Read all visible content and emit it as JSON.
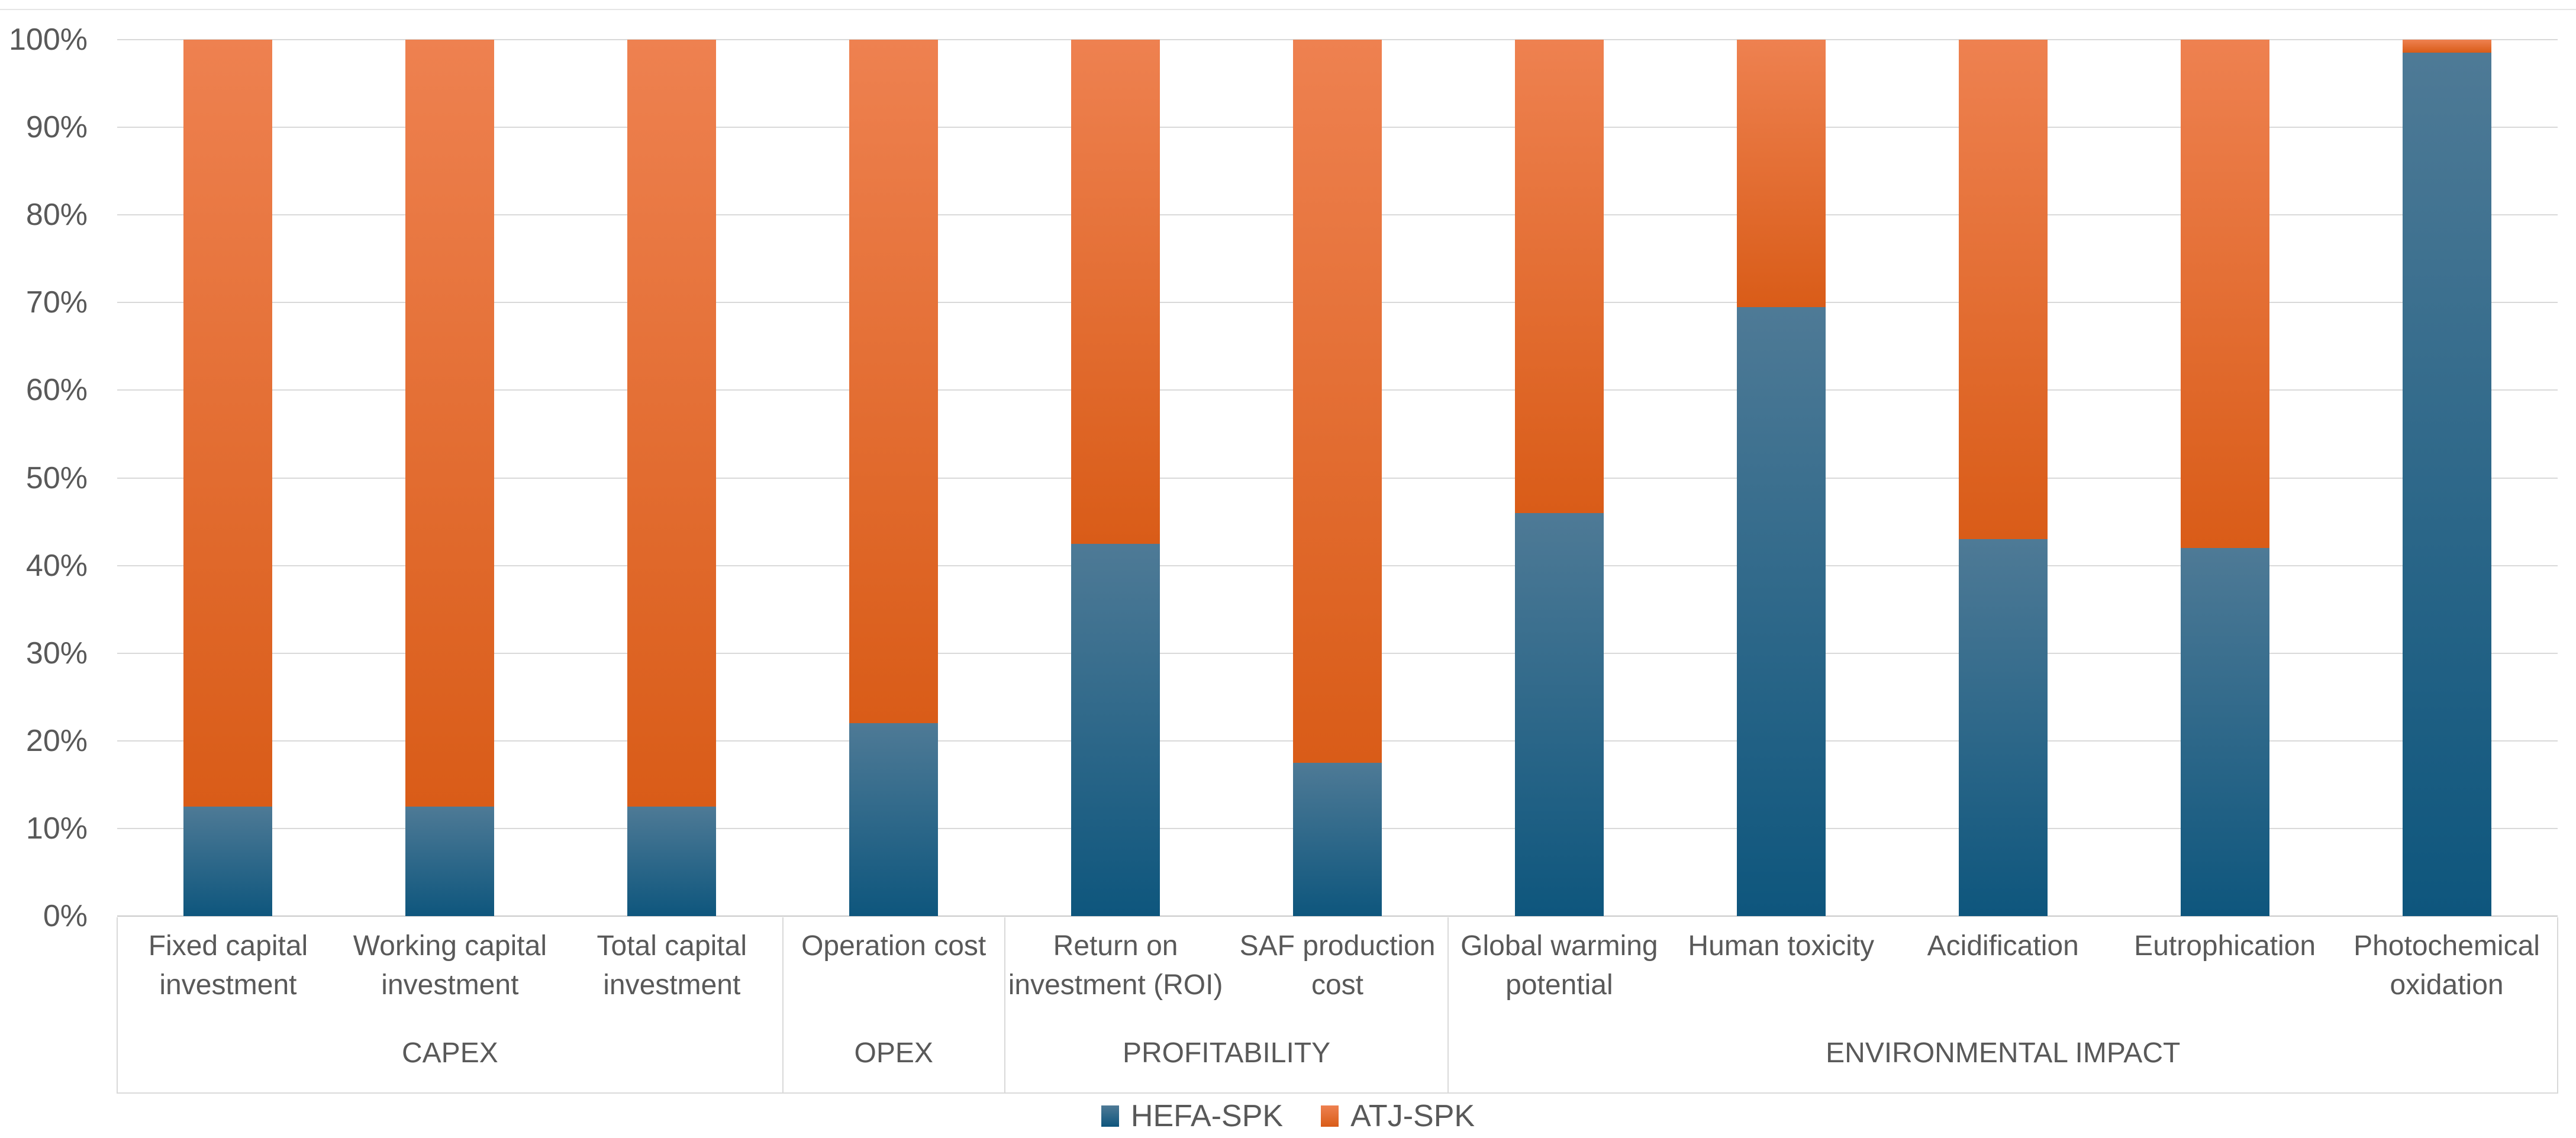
{
  "chart_data": {
    "type": "bar",
    "variant": "100%-stacked-column",
    "categories": [
      "Fixed capital investment",
      "Working capital investment",
      "Total capital investment",
      "Operation cost",
      "Return on investment (ROI)",
      "SAF production cost",
      "Global warming potential",
      "Human toxicity",
      "Acidification",
      "Eutrophication",
      "Photochemical oxidation"
    ],
    "category_groups": [
      {
        "label": "CAPEX",
        "span": 3
      },
      {
        "label": "OPEX",
        "span": 1
      },
      {
        "label": "PROFITABILITY",
        "span": 2
      },
      {
        "label": "ENVIRONMENTAL IMPACT",
        "span": 5
      }
    ],
    "series": [
      {
        "name": "HEFA-SPK",
        "values": [
          12.5,
          12.5,
          12.5,
          22,
          42.5,
          17.5,
          46,
          69.5,
          43,
          42,
          98.5
        ],
        "color_top": "#4E7A96",
        "color_bottom": "#0E567D"
      },
      {
        "name": "ATJ-SPK",
        "values": [
          87.5,
          87.5,
          87.5,
          78,
          57.5,
          82.5,
          54,
          30.5,
          57,
          58,
          1.5
        ],
        "color_top": "#EE8150",
        "color_bottom": "#D95C18"
      }
    ],
    "y_axis": {
      "min": 0,
      "max": 100,
      "unit": "%",
      "tick_step": 10,
      "ticks": [
        "100%",
        "90%",
        "80%",
        "70%",
        "60%",
        "50%",
        "40%",
        "30%",
        "20%",
        "10%",
        "0%"
      ]
    },
    "grid": true,
    "legend_position": "bottom",
    "title": ""
  },
  "colors": {
    "hefa_gradient_top": "#4E7A96",
    "hefa_gradient_bottom": "#0E567D",
    "atj_gradient_top": "#EE8150",
    "atj_gradient_bottom": "#D95C18",
    "gridline": "#D9D9D9",
    "axis_line": "#C9C9C9",
    "label_text": "#595959",
    "background": "#FFFFFF"
  }
}
